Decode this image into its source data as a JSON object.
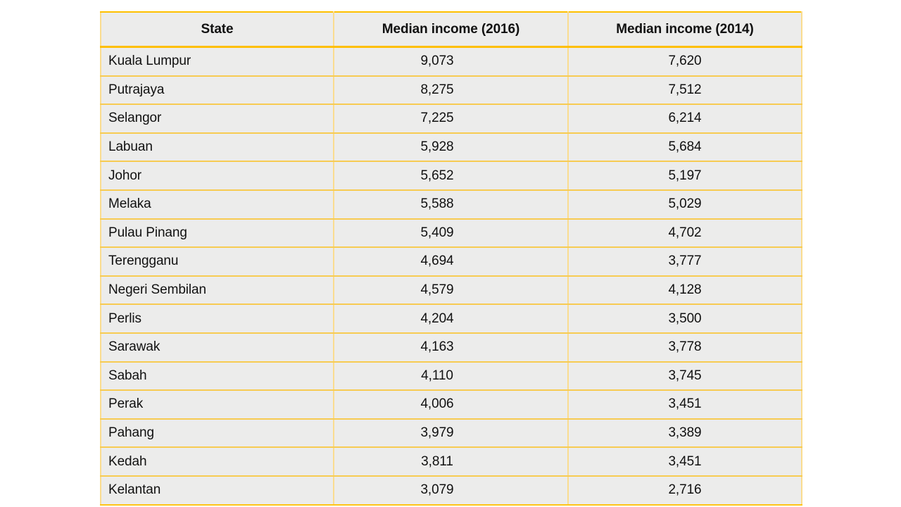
{
  "chart_data": {
    "type": "table",
    "columns": [
      "State",
      "Median income (2016)",
      "Median income (2014)"
    ],
    "rows": [
      [
        "Kuala Lumpur",
        "9,073",
        "7,620"
      ],
      [
        "Putrajaya",
        "8,275",
        "7,512"
      ],
      [
        "Selangor",
        "7,225",
        "6,214"
      ],
      [
        "Labuan",
        "5,928",
        "5,684"
      ],
      [
        "Johor",
        "5,652",
        "5,197"
      ],
      [
        "Melaka",
        "5,588",
        "5,029"
      ],
      [
        "Pulau Pinang",
        "5,409",
        "4,702"
      ],
      [
        "Terengganu",
        "4,694",
        "3,777"
      ],
      [
        "Negeri Sembilan",
        "4,579",
        "4,128"
      ],
      [
        "Perlis",
        "4,204",
        "3,500"
      ],
      [
        "Sarawak",
        "4,163",
        "3,778"
      ],
      [
        "Sabah",
        "4,110",
        "3,745"
      ],
      [
        "Perak",
        "4,006",
        "3,451"
      ],
      [
        "Pahang",
        "3,979",
        "3,389"
      ],
      [
        "Kedah",
        "3,811",
        "3,451"
      ],
      [
        "Kelantan",
        "3,079",
        "2,716"
      ]
    ],
    "layout_hints": {
      "header_bold": true,
      "state_column_align": "left",
      "number_columns_align": "center"
    }
  },
  "colors": {
    "border_strong_gold": "#FFC000",
    "border_inner_horizontal": "#F7CB52",
    "border_vertical_pale": "#FADC8F",
    "cell_background": "#ECECEB",
    "page_background": "#FFFFFF",
    "text": "#111111"
  }
}
